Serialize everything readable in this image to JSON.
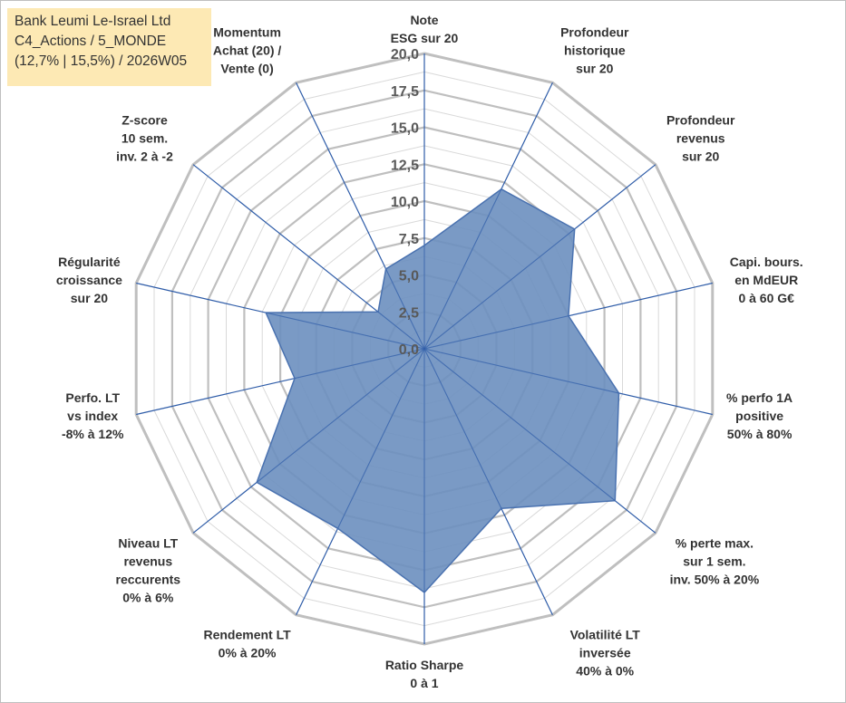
{
  "info_box": {
    "line1": "Bank Leumi Le-Israel Ltd",
    "line2": "C4_Actions / 5_MONDE",
    "line3": "(12,7% | 15,5%) / 2026W05"
  },
  "colors": {
    "fill": "#6b8fbf",
    "stroke": "#4a72b0",
    "spoke": "#2e5ca8",
    "ring_major": "#bfbfbf",
    "ring_minor": "#d9d9d9",
    "info_bg": "#fde9b4"
  },
  "chart_data": {
    "type": "radar",
    "title": "",
    "range": [
      0,
      20
    ],
    "ticks": [
      "0,0",
      "2,5",
      "5,0",
      "7,5",
      "10,0",
      "12,5",
      "15,0",
      "17,5",
      "20,0"
    ],
    "tick_values": [
      0,
      2.5,
      5,
      7.5,
      10,
      12.5,
      15,
      17.5,
      20
    ],
    "axes": [
      {
        "label": [
          "Note",
          "ESG sur 20"
        ],
        "value": 7.0
      },
      {
        "label": [
          "Profondeur",
          "historique",
          "sur 20"
        ],
        "value": 12.0
      },
      {
        "label": [
          "Profondeur",
          "revenus",
          "sur 20"
        ],
        "value": 13.0
      },
      {
        "label": [
          "Capi. bours.",
          "en MdEUR",
          "0 à 60 G€"
        ],
        "value": 10.0
      },
      {
        "label": [
          "% perfo 1A",
          "positive",
          "50% à 80%"
        ],
        "value": 13.5
      },
      {
        "label": [
          "% perte max.",
          "sur 1 sem.",
          "inv. 50% à 20%"
        ],
        "value": 16.5
      },
      {
        "label": [
          "Volatilité LT",
          "inversée",
          "40% à 0%"
        ],
        "value": 12.0
      },
      {
        "label": [
          "Ratio Sharpe",
          "0 à 1"
        ],
        "value": 16.5
      },
      {
        "label": [
          "Rendement LT",
          "0% à 20%"
        ],
        "value": 13.5
      },
      {
        "label": [
          "Niveau LT",
          "revenus",
          "reccurents",
          "0% à 6%"
        ],
        "value": 14.5
      },
      {
        "label": [
          "Perfo. LT",
          "vs index",
          "-8% à 12%"
        ],
        "value": 9.0
      },
      {
        "label": [
          "Régularité",
          "croissance",
          "sur 20"
        ],
        "value": 11.0
      },
      {
        "label": [
          "Z-score",
          "10 sem.",
          "inv. 2 à -2"
        ],
        "value": 4.0
      },
      {
        "label": [
          "Momentum",
          "Achat (20) /",
          "Vente (0)"
        ],
        "value": 6.0
      }
    ]
  }
}
